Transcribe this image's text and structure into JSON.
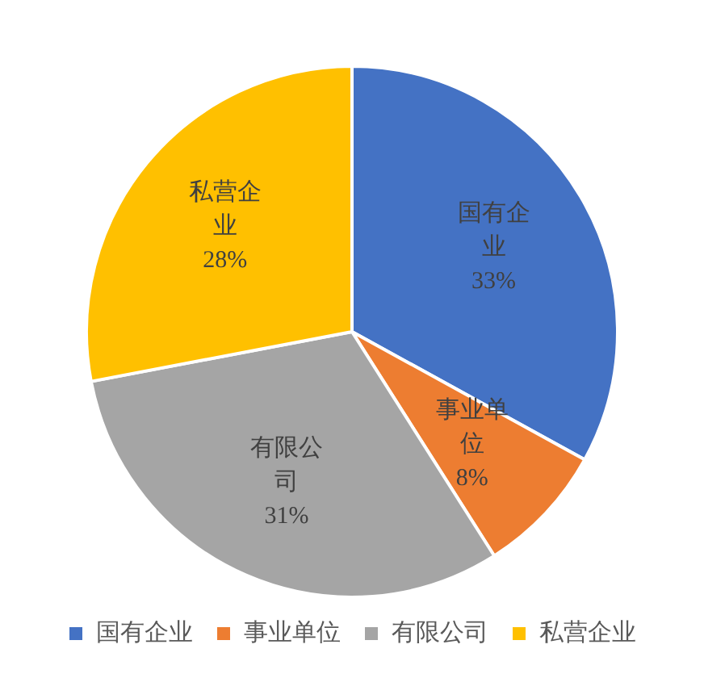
{
  "chart_data": {
    "type": "pie",
    "categories": [
      "国有企业",
      "事业单位",
      "有限公司",
      "私营企业"
    ],
    "values": [
      33,
      8,
      31,
      28
    ],
    "value_labels": [
      "33%",
      "8%",
      "31%",
      "28%"
    ],
    "colors": [
      "#4472c4",
      "#ed7d31",
      "#a5a5a5",
      "#ffc000"
    ],
    "data_labels": true,
    "legend": "bottom"
  }
}
